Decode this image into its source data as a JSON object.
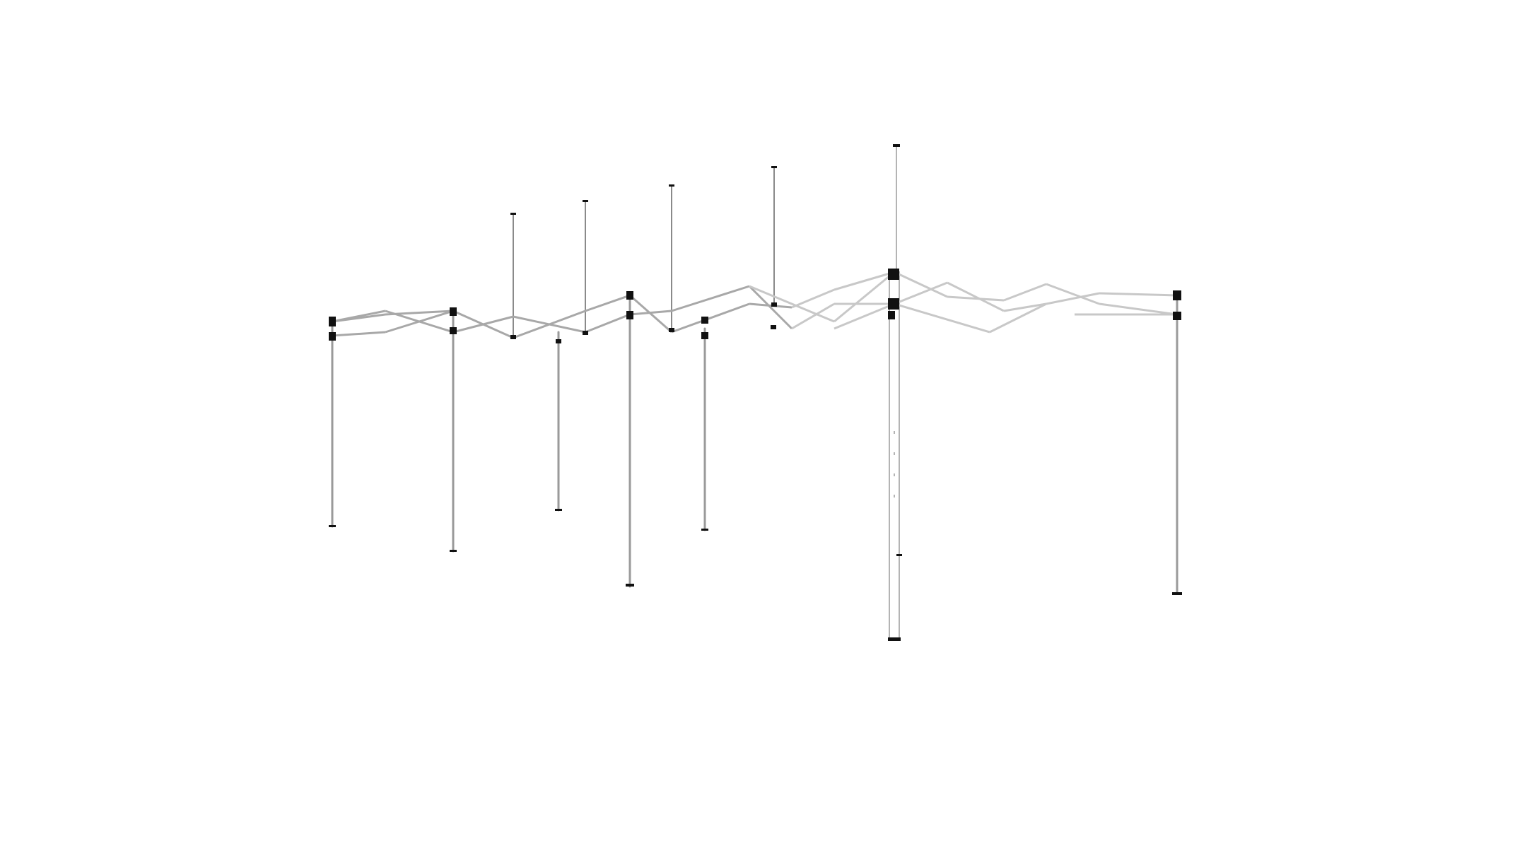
{
  "image": {
    "background": "#ffffff",
    "frame_color": "#c8c8c8",
    "frame_shade": "#9a9a9a",
    "bracket_color": "#111111"
  }
}
